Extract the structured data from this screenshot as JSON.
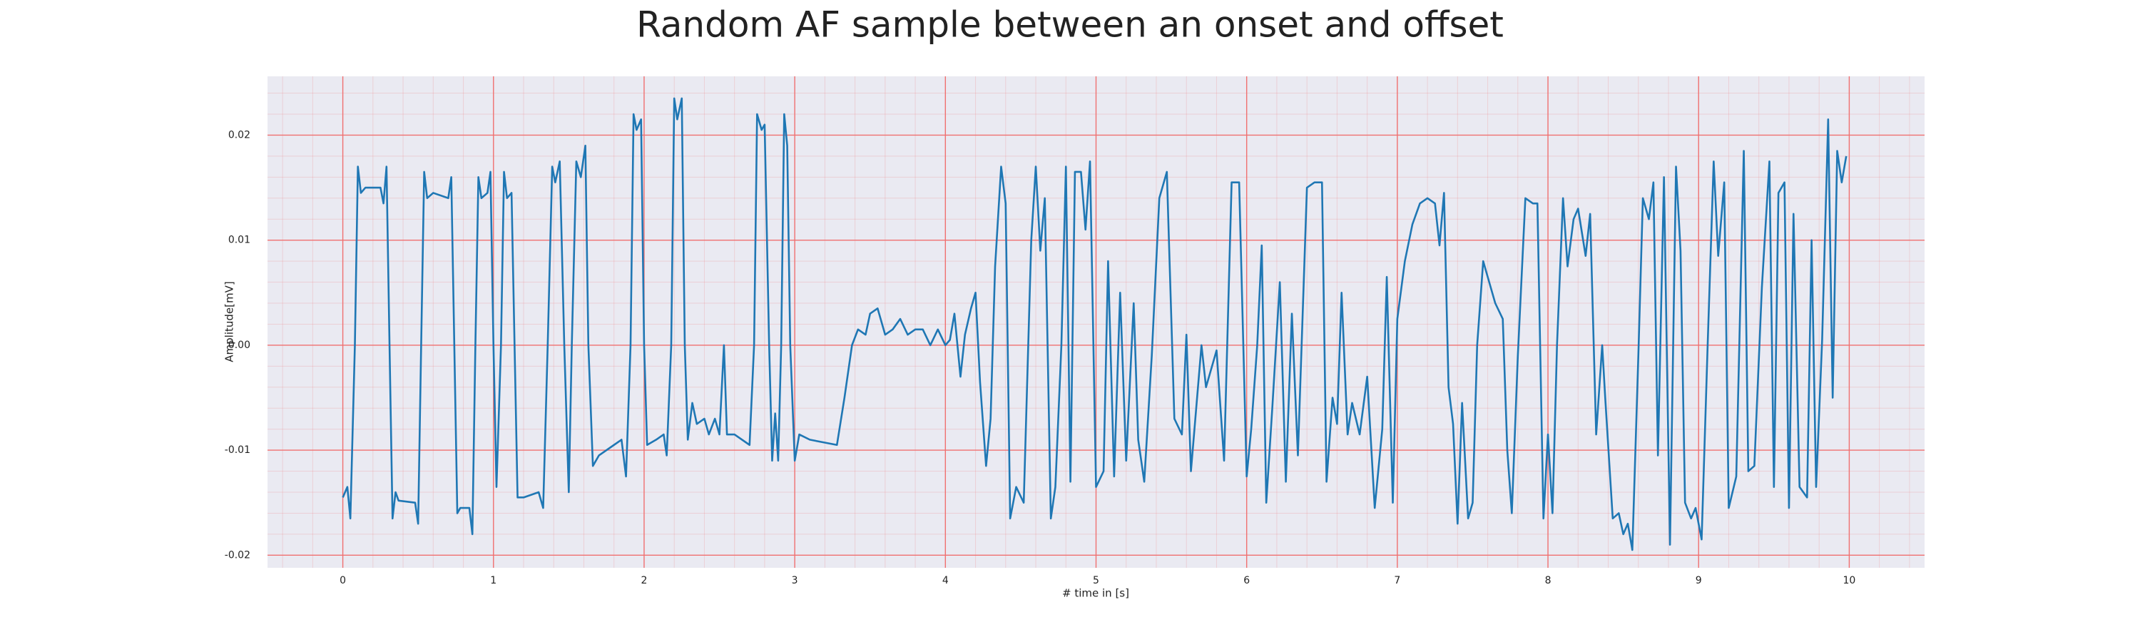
{
  "chart_data": {
    "type": "line",
    "title": "Random AF sample between an onset and offset",
    "x_label": "# time in [s]",
    "y_label": "Amplitude[mV]",
    "xlim": [
      -0.5,
      10.5
    ],
    "ylim": [
      -0.0212,
      0.0256
    ],
    "xticks": [
      0,
      1,
      2,
      3,
      4,
      5,
      6,
      7,
      8,
      9,
      10
    ],
    "yticks": [
      -0.02,
      -0.01,
      {
        "value": 0,
        "label": "0.00"
      },
      0.01,
      0.02
    ],
    "grid": true,
    "minor_grid": true,
    "background": "#eaeaf2",
    "grid_color": "#f07070",
    "x": [
      0.0,
      0.03,
      0.05,
      0.08,
      0.1,
      0.12,
      0.15,
      0.25,
      0.27,
      0.29,
      0.31,
      0.33,
      0.35,
      0.37,
      0.48,
      0.5,
      0.52,
      0.54,
      0.56,
      0.6,
      0.7,
      0.72,
      0.74,
      0.76,
      0.78,
      0.84,
      0.86,
      0.88,
      0.9,
      0.92,
      0.96,
      0.98,
      1.0,
      1.02,
      1.05,
      1.07,
      1.09,
      1.12,
      1.14,
      1.16,
      1.2,
      1.3,
      1.33,
      1.36,
      1.39,
      1.41,
      1.44,
      1.47,
      1.5,
      1.52,
      1.55,
      1.58,
      1.61,
      1.63,
      1.66,
      1.7,
      1.8,
      1.85,
      1.88,
      1.91,
      1.93,
      1.95,
      1.98,
      2.0,
      2.02,
      2.08,
      2.13,
      2.15,
      2.18,
      2.2,
      2.22,
      2.25,
      2.27,
      2.29,
      2.32,
      2.35,
      2.4,
      2.43,
      2.47,
      2.5,
      2.53,
      2.55,
      2.6,
      2.7,
      2.73,
      2.75,
      2.78,
      2.8,
      2.83,
      2.85,
      2.87,
      2.89,
      2.91,
      2.93,
      2.95,
      2.97,
      3.0,
      3.03,
      3.1,
      3.28,
      3.33,
      3.38,
      3.42,
      3.47,
      3.5,
      3.55,
      3.6,
      3.65,
      3.7,
      3.75,
      3.8,
      3.85,
      3.9,
      3.95,
      4.0,
      4.03,
      4.06,
      4.1,
      4.13,
      4.17,
      4.2,
      4.23,
      4.27,
      4.3,
      4.33,
      4.37,
      4.4,
      4.43,
      4.47,
      4.52,
      4.57,
      4.6,
      4.63,
      4.66,
      4.7,
      4.73,
      4.77,
      4.8,
      4.83,
      4.86,
      4.9,
      4.93,
      4.96,
      5.0,
      5.05,
      5.08,
      5.12,
      5.16,
      5.2,
      5.25,
      5.28,
      5.32,
      5.37,
      5.42,
      5.47,
      5.52,
      5.57,
      5.6,
      5.63,
      5.7,
      5.73,
      5.8,
      5.85,
      5.9,
      5.95,
      6.0,
      6.03,
      6.07,
      6.1,
      6.13,
      6.17,
      6.22,
      6.26,
      6.3,
      6.34,
      6.4,
      6.45,
      6.5,
      6.53,
      6.57,
      6.6,
      6.63,
      6.67,
      6.7,
      6.75,
      6.8,
      6.85,
      6.9,
      6.93,
      6.97,
      7.0,
      7.05,
      7.1,
      7.15,
      7.2,
      7.25,
      7.28,
      7.31,
      7.34,
      7.37,
      7.4,
      7.43,
      7.47,
      7.5,
      7.53,
      7.57,
      7.6,
      7.65,
      7.7,
      7.73,
      7.76,
      7.8,
      7.85,
      7.9,
      7.93,
      7.97,
      8.0,
      8.03,
      8.06,
      8.1,
      8.13,
      8.17,
      8.2,
      8.25,
      8.28,
      8.32,
      8.36,
      8.38,
      8.43,
      8.47,
      8.5,
      8.53,
      8.56,
      8.6,
      8.63,
      8.67,
      8.7,
      8.73,
      8.77,
      8.81,
      8.85,
      8.88,
      8.91,
      8.95,
      8.98,
      9.02,
      9.06,
      9.1,
      9.13,
      9.17,
      9.2,
      9.25,
      9.3,
      9.33,
      9.37,
      9.42,
      9.47,
      9.5,
      9.53,
      9.57,
      9.6,
      9.63,
      9.67,
      9.72,
      9.75,
      9.78,
      9.82,
      9.86,
      9.89,
      9.92,
      9.95,
      9.98
    ],
    "series": [
      {
        "color": "#1f77b4",
        "values": [
          -0.0145,
          -0.0135,
          -0.0165,
          0.0,
          0.017,
          0.0145,
          0.015,
          0.015,
          0.0135,
          0.017,
          0.0,
          -0.0165,
          -0.014,
          -0.0148,
          -0.015,
          -0.017,
          0.0,
          0.0165,
          0.014,
          0.0145,
          0.014,
          0.016,
          0.0,
          -0.016,
          -0.0155,
          -0.0155,
          -0.018,
          0.0,
          0.016,
          0.014,
          0.0145,
          0.0165,
          0.0,
          -0.0135,
          0.0,
          0.0165,
          0.014,
          0.0145,
          0.0,
          -0.0145,
          -0.0145,
          -0.014,
          -0.0155,
          0.0,
          0.017,
          0.0155,
          0.0175,
          0.0,
          -0.014,
          0.0,
          0.0175,
          0.016,
          0.019,
          0.0,
          -0.0115,
          -0.0105,
          -0.0095,
          -0.009,
          -0.0125,
          0.0,
          0.022,
          0.0205,
          0.0215,
          0.0,
          -0.0095,
          -0.009,
          -0.0085,
          -0.0105,
          0.0,
          0.0235,
          0.0215,
          0.0235,
          0.0,
          -0.009,
          -0.0055,
          -0.0075,
          -0.007,
          -0.0085,
          -0.007,
          -0.0085,
          0.0,
          -0.0085,
          -0.0085,
          -0.0095,
          0.0,
          0.022,
          0.0205,
          0.021,
          0.0,
          -0.011,
          -0.0065,
          -0.011,
          0.0,
          0.022,
          0.019,
          0.0,
          -0.011,
          -0.0085,
          -0.009,
          -0.0095,
          -0.005,
          0.0,
          0.0015,
          0.001,
          0.003,
          0.0035,
          0.001,
          0.0015,
          0.0025,
          0.001,
          0.0015,
          0.0015,
          0.0,
          0.0015,
          0.0,
          0.0005,
          0.003,
          -0.003,
          0.001,
          0.0035,
          0.005,
          -0.0035,
          -0.0115,
          -0.007,
          0.0075,
          0.017,
          0.0135,
          -0.0165,
          -0.0135,
          -0.015,
          0.01,
          0.017,
          0.009,
          0.014,
          -0.0165,
          -0.0135,
          0.0,
          0.017,
          -0.013,
          0.0165,
          0.0165,
          0.011,
          0.0175,
          -0.0135,
          -0.012,
          0.008,
          -0.0125,
          0.005,
          -0.011,
          0.004,
          -0.009,
          -0.013,
          -0.001,
          0.014,
          0.0165,
          -0.007,
          -0.0085,
          0.001,
          -0.012,
          0.0,
          -0.004,
          -0.0005,
          -0.011,
          0.0155,
          0.0155,
          -0.0125,
          -0.008,
          0.0,
          0.0095,
          -0.015,
          -0.006,
          0.006,
          -0.013,
          0.003,
          -0.0105,
          0.015,
          0.0155,
          0.0155,
          -0.013,
          -0.005,
          -0.0075,
          0.005,
          -0.0085,
          -0.0055,
          -0.0085,
          -0.003,
          -0.0155,
          -0.008,
          0.0065,
          -0.015,
          0.0025,
          0.008,
          0.0115,
          0.0135,
          0.014,
          0.0135,
          0.0095,
          0.0145,
          -0.004,
          -0.0075,
          -0.017,
          -0.0055,
          -0.0165,
          -0.015,
          0.0,
          0.008,
          0.0065,
          0.004,
          0.0025,
          -0.01,
          -0.016,
          -0.001,
          0.014,
          0.0135,
          0.0135,
          -0.0165,
          -0.0085,
          -0.016,
          0.0,
          0.014,
          0.0075,
          0.012,
          0.013,
          0.0085,
          0.0125,
          -0.0085,
          0.0,
          -0.005,
          -0.0165,
          -0.016,
          -0.018,
          -0.017,
          -0.0195,
          -0.001,
          0.014,
          0.012,
          0.0155,
          -0.0105,
          0.016,
          -0.019,
          0.017,
          0.009,
          -0.015,
          -0.0165,
          -0.0155,
          -0.0185,
          0.0,
          0.0175,
          0.0085,
          0.0155,
          -0.0155,
          -0.0125,
          0.0185,
          -0.012,
          -0.0115,
          0.0055,
          0.0175,
          -0.0135,
          0.0145,
          0.0155,
          -0.0155,
          0.0125,
          -0.0135,
          -0.0145,
          0.01,
          -0.0135,
          0.0005,
          0.0215,
          -0.005,
          0.0185,
          0.0155,
          0.018
        ]
      }
    ]
  }
}
